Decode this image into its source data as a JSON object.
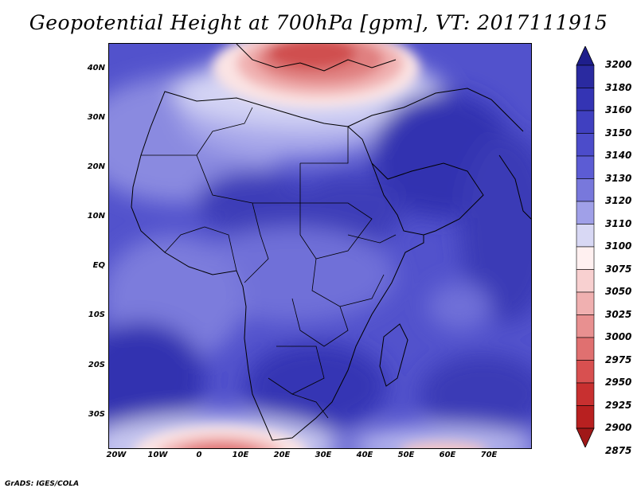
{
  "title": "Geopotential Height at 700hPa [gpm], VT: 2017111915",
  "credit": "GrADS: IGES/COLA",
  "lat_labels": [
    "40N",
    "30N",
    "20N",
    "10N",
    "EQ",
    "10S",
    "20S",
    "30S"
  ],
  "lon_labels": [
    "20W",
    "10W",
    "0",
    "10E",
    "20E",
    "30E",
    "40E",
    "50E",
    "60E",
    "70E"
  ],
  "colorbar": {
    "levels": [
      "3200",
      "3180",
      "3160",
      "3150",
      "3140",
      "3130",
      "3120",
      "3110",
      "3100",
      "3075",
      "3050",
      "3025",
      "3000",
      "2975",
      "2950",
      "2925",
      "2900",
      "2875"
    ],
    "colors": [
      "#1e1e8c",
      "#2a2aa0",
      "#3434b4",
      "#4040c0",
      "#4c4cca",
      "#5c5cd4",
      "#7878dc",
      "#a0a0e8",
      "#d8d8f4",
      "#fff0f0",
      "#f8d0d0",
      "#f0b0b0",
      "#e89090",
      "#e07070",
      "#d85050",
      "#c83030",
      "#b82020",
      "#a01818"
    ]
  }
}
